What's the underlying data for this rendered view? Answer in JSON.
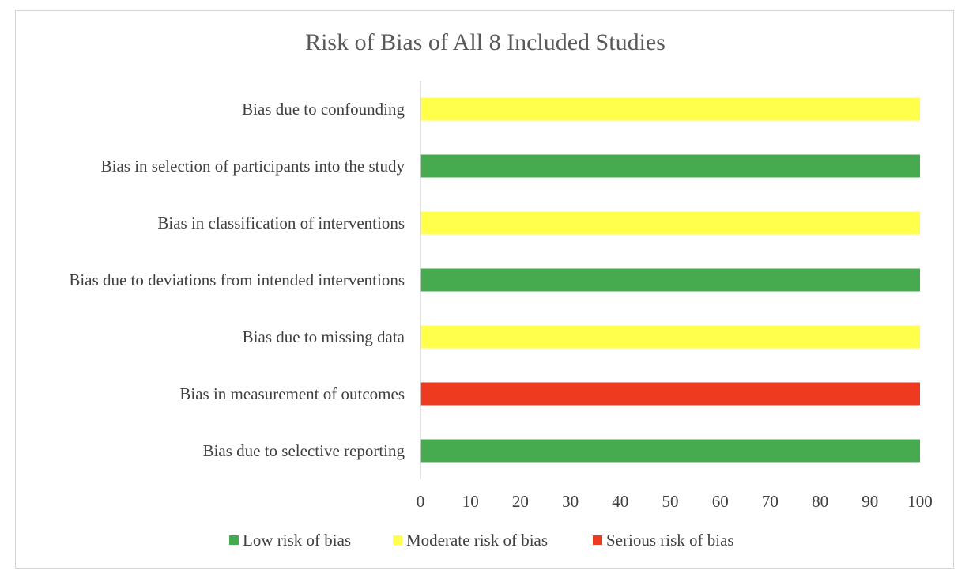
{
  "chart_data": {
    "type": "bar",
    "orientation": "horizontal",
    "title": "Risk of Bias of All 8 Included Studies",
    "xlabel": "",
    "ylabel": "",
    "xlim": [
      0,
      100
    ],
    "ticks": [
      0,
      10,
      20,
      30,
      40,
      50,
      60,
      70,
      80,
      90,
      100
    ],
    "grid": false,
    "legend_position": "bottom",
    "categories": [
      "Bias due to confounding",
      "Bias in selection of participants into the study",
      "Bias in classification of interventions",
      "Bias due to deviations from intended interventions",
      "Bias due to missing data",
      "Bias in measurement of outcomes",
      "Bias due to selective reporting"
    ],
    "values": [
      100,
      100,
      100,
      100,
      100,
      100,
      100
    ],
    "bar_risk": [
      "moderate",
      "low",
      "moderate",
      "low",
      "moderate",
      "serious",
      "low"
    ],
    "legend": [
      {
        "key": "low",
        "label": "Low risk of bias",
        "color": "#46ab4f"
      },
      {
        "key": "moderate",
        "label": "Moderate risk of bias",
        "color": "#ffff4c"
      },
      {
        "key": "serious",
        "label": "Serious risk of bias",
        "color": "#ee3a1f"
      }
    ]
  }
}
